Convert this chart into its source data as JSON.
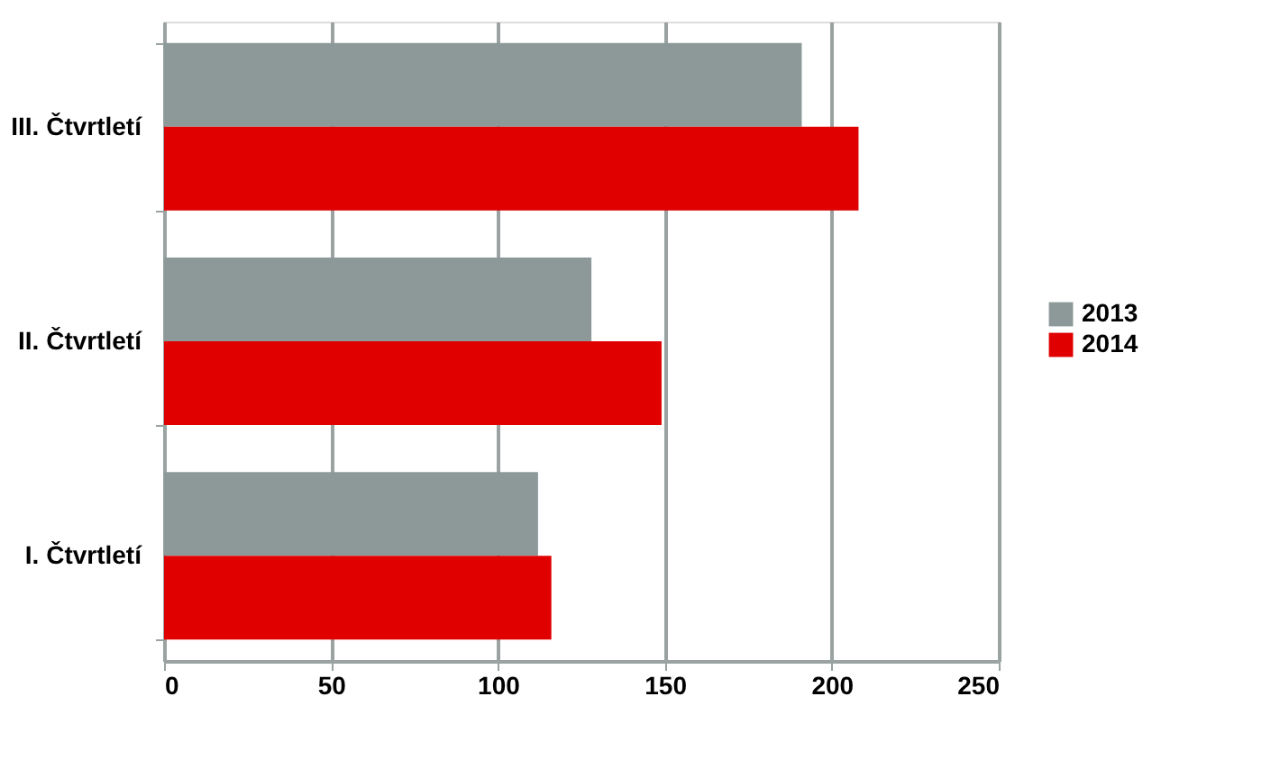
{
  "chart_data": {
    "type": "bar",
    "orientation": "horizontal",
    "categories": [
      "III. Čtvrtletí",
      "II. Čtvrtletí",
      "I. Čtvrtletí"
    ],
    "series": [
      {
        "name": "2013",
        "color": "#8c9998",
        "values": [
          191,
          128,
          112
        ]
      },
      {
        "name": "2014",
        "color": "#e00000",
        "values": [
          208,
          149,
          116
        ]
      }
    ],
    "xlim": [
      0,
      250
    ],
    "xticks": [
      0,
      50,
      100,
      150,
      200,
      250
    ],
    "grid": "x",
    "legend": "right"
  }
}
